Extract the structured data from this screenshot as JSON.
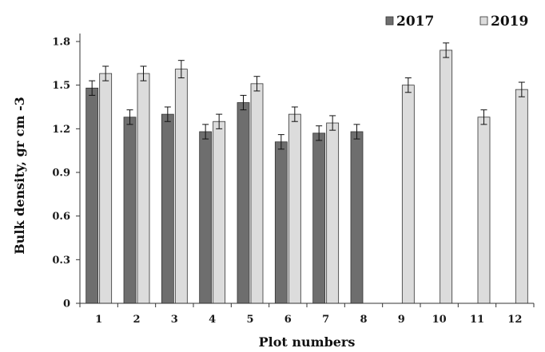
{
  "chart_data": {
    "type": "bar",
    "title": "",
    "xlabel": "Plot numbers",
    "ylabel": "Bulk density, gr cm -3",
    "ylim": [
      0,
      1.8
    ],
    "yticks": [
      0,
      0.3,
      0.6,
      0.9,
      1.2,
      1.5,
      1.8
    ],
    "ytick_labels": [
      "0",
      "0.3",
      "0.6",
      "0.9",
      "1.2",
      "1.5",
      "1.8"
    ],
    "categories": [
      "1",
      "2",
      "3",
      "4",
      "5",
      "6",
      "7",
      "8",
      "9",
      "10",
      "11",
      "12"
    ],
    "legend_position": "top-right",
    "grid": false,
    "error_bars": true,
    "series": [
      {
        "name": "2017",
        "color": "#6e6e6e",
        "values": [
          1.48,
          1.28,
          1.3,
          1.18,
          1.38,
          1.11,
          1.17,
          1.18,
          null,
          null,
          null,
          null
        ],
        "errors": [
          0.05,
          0.05,
          0.05,
          0.05,
          0.05,
          0.05,
          0.05,
          0.05,
          null,
          null,
          null,
          null
        ]
      },
      {
        "name": "2019",
        "color": "#dcdcdc",
        "values": [
          1.58,
          1.58,
          1.61,
          1.25,
          1.51,
          1.3,
          1.24,
          null,
          1.5,
          1.74,
          1.28,
          1.47
        ],
        "errors": [
          0.05,
          0.05,
          0.06,
          0.05,
          0.05,
          0.05,
          0.05,
          null,
          0.05,
          0.05,
          0.05,
          0.05
        ]
      }
    ]
  }
}
